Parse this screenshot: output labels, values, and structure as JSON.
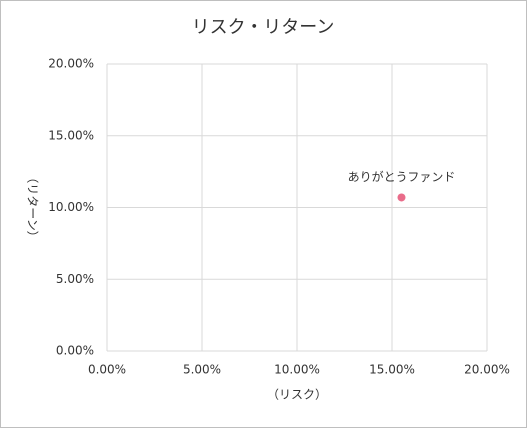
{
  "chart_data": {
    "type": "scatter",
    "title": "リスク・リターン",
    "x_label": "（リスク）",
    "y_label": "（リターン）",
    "series": [
      {
        "name": "ありがとうファンド",
        "color": "#e96c8a",
        "x": [
          15.5
        ],
        "values": [
          10.7
        ]
      }
    ],
    "xlim": [
      0,
      20
    ],
    "ylim": [
      0,
      20
    ],
    "xticks": [
      {
        "value": 0,
        "label": "0.00%"
      },
      {
        "value": 5,
        "label": "5.00%"
      },
      {
        "value": 10,
        "label": "10.00%"
      },
      {
        "value": 15,
        "label": "15.00%"
      },
      {
        "value": 20,
        "label": "20.00%"
      }
    ],
    "yticks": [
      {
        "value": 0,
        "label": "0.00%"
      },
      {
        "value": 5,
        "label": "5.00%"
      },
      {
        "value": 10,
        "label": "10.00%"
      },
      {
        "value": 15,
        "label": "15.00%"
      },
      {
        "value": 20,
        "label": "20.00%"
      }
    ],
    "grid": true
  }
}
